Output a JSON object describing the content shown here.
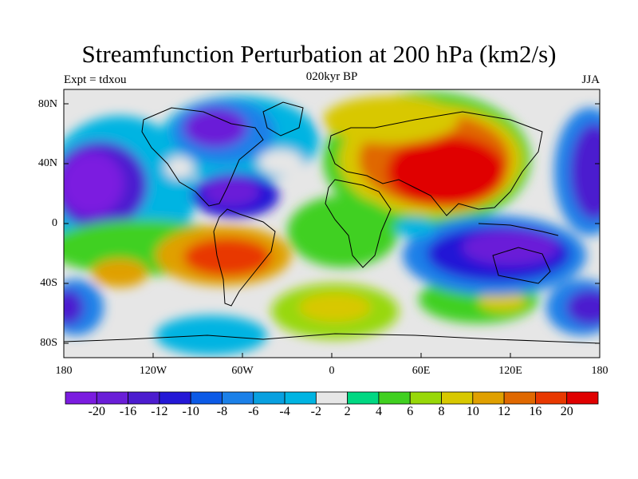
{
  "title": "Streamfunction Perturbation at 200 hPa (km2/s)",
  "subtitle": {
    "left": "Expt = tdxou",
    "center": "020kyr BP",
    "right": "JJA"
  },
  "lat_labels": [
    "80N",
    "40N",
    "0",
    "40S",
    "80S"
  ],
  "lon_labels": [
    "180",
    "120W",
    "60W",
    "0",
    "60E",
    "120E",
    "180"
  ],
  "colorbar": {
    "colors": [
      "#7b1ce0",
      "#6a1ed8",
      "#4c1ccf",
      "#2418d6",
      "#0c5ae6",
      "#1b80e8",
      "#08a0e0",
      "#00b4e2",
      "#e6e6e6",
      "#00d882",
      "#40d020",
      "#98d808",
      "#d8c800",
      "#e0a000",
      "#e06800",
      "#e83800",
      "#e00000"
    ],
    "labels": [
      "-20",
      "-16",
      "-12",
      "-10",
      "-8",
      "-6",
      "-4",
      "-2",
      "2",
      "4",
      "6",
      "8",
      "10",
      "12",
      "16",
      "20"
    ]
  },
  "anomalies": [
    {
      "name": "asia-high",
      "values": [
        [
          0.9,
          60,
          40
        ],
        [
          0.55,
          40,
          55
        ]
      ]
    }
  ]
}
